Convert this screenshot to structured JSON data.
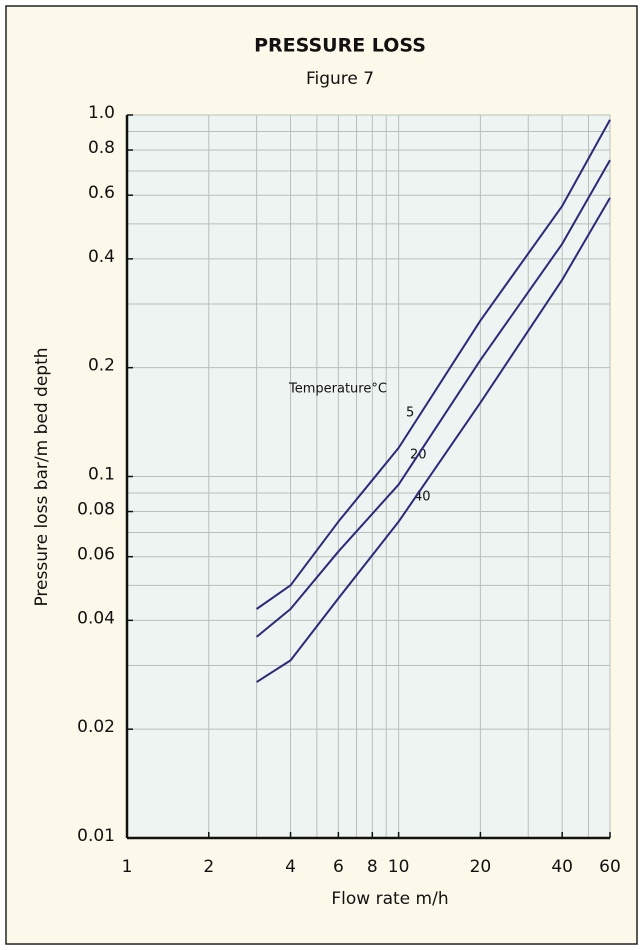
{
  "chart_data": {
    "type": "line",
    "title": "PRESSURE LOSS",
    "subtitle": "Figure 7",
    "x_label": "Flow rate m/h",
    "y_label": "Pressure loss bar/m bed depth",
    "annotation": "Temperature°C",
    "x": [
      3,
      4,
      6,
      10,
      20,
      40,
      60
    ],
    "series": [
      {
        "name": "5",
        "color": "#2b2a7a",
        "values": [
          0.043,
          0.05,
          0.075,
          0.12,
          0.27,
          0.56,
          0.97
        ]
      },
      {
        "name": "20",
        "color": "#2b2a7a",
        "values": [
          0.036,
          0.043,
          0.062,
          0.095,
          0.21,
          0.44,
          0.75
        ]
      },
      {
        "name": "40",
        "color": "#2b2a7a",
        "values": [
          0.027,
          0.031,
          0.046,
          0.075,
          0.16,
          0.35,
          0.59
        ]
      }
    ],
    "xlim": [
      1,
      60
    ],
    "ylim": [
      0.01,
      1
    ],
    "xticks": [
      1,
      2,
      4,
      6,
      8,
      10,
      20,
      40,
      60
    ],
    "yticks": [
      {
        "value": 1,
        "label": "1.0"
      },
      0.8,
      0.6,
      0.4,
      0.2,
      0.1,
      0.08,
      0.06,
      0.04,
      0.02,
      0.01
    ],
    "xminor": [
      3,
      5,
      7,
      9,
      30,
      50
    ],
    "yminor": [
      0.03,
      0.05,
      0.07,
      0.09,
      0.3,
      0.5,
      0.7,
      0.9
    ],
    "xlog": true,
    "ylog": true,
    "grid": true
  }
}
